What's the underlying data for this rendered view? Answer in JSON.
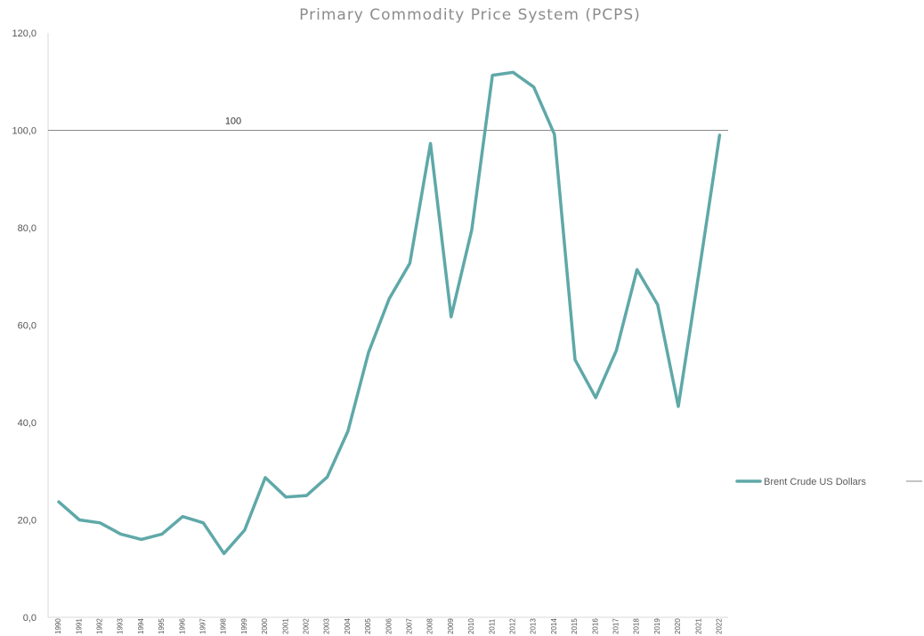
{
  "chart_data": {
    "type": "line",
    "title": "Primary Commodity Price System (PCPS)",
    "xlabel": "",
    "ylabel": "",
    "ylim": [
      0,
      120
    ],
    "y_ticks": [
      "0,0",
      "20,0",
      "40,0",
      "60,0",
      "80,0",
      "100,0",
      "120,0"
    ],
    "categories": [
      "1990",
      "1991",
      "1992",
      "1993",
      "1994",
      "1995",
      "1996",
      "1997",
      "1998",
      "1999",
      "2000",
      "2001",
      "2002",
      "2003",
      "2004",
      "2005",
      "2006",
      "2007",
      "2008",
      "2009",
      "2010",
      "2011",
      "2012",
      "2013",
      "2014",
      "2015",
      "2016",
      "2017",
      "2018",
      "2019",
      "2020",
      "2021",
      "2022"
    ],
    "series": [
      {
        "name": "Brent Crude US Dollars",
        "color": "#5fa8a8",
        "values": [
          23.7,
          20.0,
          19.4,
          17.1,
          16.0,
          17.1,
          20.7,
          19.4,
          13.1,
          17.9,
          28.7,
          24.7,
          25.0,
          28.8,
          38.2,
          54.4,
          65.4,
          72.7,
          97.3,
          61.7,
          79.6,
          111.3,
          111.9,
          108.9,
          99.2,
          52.9,
          45.1,
          54.8,
          71.4,
          64.2,
          43.3,
          70.8,
          99.0
        ]
      }
    ],
    "reference_line": {
      "value": 100,
      "label": "100",
      "color": "#888888"
    },
    "grid": false,
    "legend": {
      "position": "right",
      "suffix": "—"
    }
  }
}
